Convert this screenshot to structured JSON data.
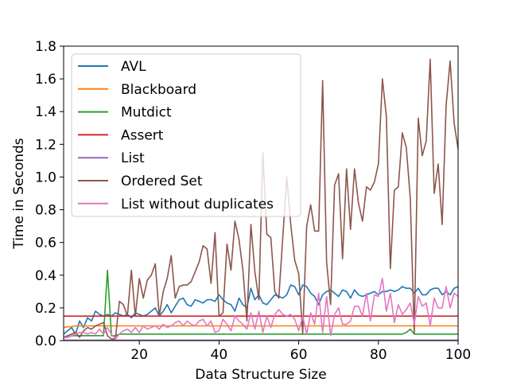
{
  "chart_data": {
    "type": "line",
    "title": "",
    "xlabel": "Data Structure Size",
    "ylabel": "Time in Seconds",
    "xlim": [
      1,
      100
    ],
    "ylim": [
      0,
      1.8
    ],
    "x_ticks": [
      20,
      40,
      60,
      80,
      100
    ],
    "y_ticks": [
      0.0,
      0.2,
      0.4,
      0.6,
      0.8,
      1.0,
      1.2,
      1.4,
      1.6,
      1.8
    ],
    "y_tick_labels": [
      "0.0",
      "0.2",
      "0.4",
      "0.6",
      "0.8",
      "1.0",
      "1.2",
      "1.4",
      "1.6",
      "1.8"
    ],
    "x_tick_labels": [
      "20",
      "40",
      "60",
      "80",
      "100"
    ],
    "grid": false,
    "legend_position": "upper-left",
    "x": [
      1,
      2,
      3,
      4,
      5,
      6,
      7,
      8,
      9,
      10,
      11,
      12,
      13,
      14,
      15,
      16,
      17,
      18,
      19,
      20,
      21,
      22,
      23,
      24,
      25,
      26,
      27,
      28,
      29,
      30,
      31,
      32,
      33,
      34,
      35,
      36,
      37,
      38,
      39,
      40,
      41,
      42,
      43,
      44,
      45,
      46,
      47,
      48,
      49,
      50,
      51,
      52,
      53,
      54,
      55,
      56,
      57,
      58,
      59,
      60,
      61,
      62,
      63,
      64,
      65,
      66,
      67,
      68,
      69,
      70,
      71,
      72,
      73,
      74,
      75,
      76,
      77,
      78,
      79,
      80,
      81,
      82,
      83,
      84,
      85,
      86,
      87,
      88,
      89,
      90,
      91,
      92,
      93,
      94,
      95,
      96,
      97,
      98,
      99,
      100
    ],
    "series": [
      {
        "name": "AVL",
        "color": "#1f77b4",
        "values": [
          0.04,
          0.06,
          0.08,
          0.04,
          0.12,
          0.08,
          0.14,
          0.12,
          0.18,
          0.16,
          0.15,
          0.16,
          0.15,
          0.17,
          0.16,
          0.15,
          0.16,
          0.14,
          0.17,
          0.16,
          0.15,
          0.16,
          0.18,
          0.2,
          0.15,
          0.18,
          0.22,
          0.17,
          0.21,
          0.25,
          0.26,
          0.22,
          0.21,
          0.25,
          0.24,
          0.23,
          0.25,
          0.25,
          0.24,
          0.28,
          0.25,
          0.23,
          0.22,
          0.18,
          0.26,
          0.22,
          0.2,
          0.32,
          0.25,
          0.28,
          0.23,
          0.22,
          0.25,
          0.28,
          0.27,
          0.26,
          0.28,
          0.34,
          0.33,
          0.28,
          0.34,
          0.33,
          0.29,
          0.27,
          0.22,
          0.28,
          0.3,
          0.31,
          0.29,
          0.27,
          0.31,
          0.3,
          0.26,
          0.31,
          0.28,
          0.27,
          0.28,
          0.29,
          0.3,
          0.28,
          0.3,
          0.3,
          0.31,
          0.3,
          0.31,
          0.33,
          0.32,
          0.32,
          0.29,
          0.32,
          0.28,
          0.28,
          0.31,
          0.32,
          0.32,
          0.28,
          0.3,
          0.28,
          0.32,
          0.33
        ]
      },
      {
        "name": "Blackboard",
        "color": "#ff7f0e",
        "values": [
          0.08,
          0.085,
          0.085,
          0.09,
          0.09,
          0.09,
          0.09,
          0.09,
          0.09,
          0.09,
          0.09,
          0.09,
          0.09,
          0.09,
          0.09,
          0.09,
          0.09,
          0.09,
          0.09,
          0.09,
          0.09,
          0.09,
          0.09,
          0.09,
          0.09,
          0.09,
          0.09,
          0.09,
          0.09,
          0.09,
          0.09,
          0.09,
          0.09,
          0.09,
          0.09,
          0.09,
          0.09,
          0.09,
          0.09,
          0.09,
          0.09,
          0.09,
          0.09,
          0.09,
          0.09,
          0.09,
          0.09,
          0.09,
          0.09,
          0.09,
          0.09,
          0.09,
          0.09,
          0.09,
          0.09,
          0.09,
          0.09,
          0.09,
          0.09,
          0.09,
          0.09,
          0.09,
          0.09,
          0.09,
          0.09,
          0.09,
          0.09,
          0.09,
          0.09,
          0.09,
          0.09,
          0.09,
          0.09,
          0.09,
          0.09,
          0.09,
          0.09,
          0.09,
          0.09,
          0.09,
          0.09,
          0.09,
          0.09,
          0.09,
          0.09,
          0.09,
          0.09,
          0.09,
          0.09,
          0.09,
          0.09,
          0.09,
          0.09,
          0.09,
          0.09,
          0.09,
          0.09,
          0.09,
          0.09,
          0.09
        ]
      },
      {
        "name": "Mutdict",
        "color": "#2ca02c",
        "values": [
          0.02,
          0.02,
          0.03,
          0.03,
          0.03,
          0.03,
          0.03,
          0.03,
          0.03,
          0.03,
          0.03,
          0.43,
          0.03,
          0.03,
          0.04,
          0.04,
          0.04,
          0.04,
          0.04,
          0.04,
          0.04,
          0.04,
          0.04,
          0.04,
          0.04,
          0.04,
          0.04,
          0.04,
          0.04,
          0.04,
          0.04,
          0.04,
          0.04,
          0.04,
          0.04,
          0.04,
          0.04,
          0.04,
          0.04,
          0.04,
          0.04,
          0.04,
          0.04,
          0.04,
          0.04,
          0.04,
          0.04,
          0.04,
          0.04,
          0.04,
          0.04,
          0.04,
          0.04,
          0.04,
          0.04,
          0.04,
          0.04,
          0.04,
          0.04,
          0.04,
          0.04,
          0.04,
          0.04,
          0.04,
          0.04,
          0.04,
          0.04,
          0.04,
          0.04,
          0.04,
          0.04,
          0.04,
          0.04,
          0.04,
          0.04,
          0.04,
          0.04,
          0.04,
          0.04,
          0.04,
          0.04,
          0.04,
          0.04,
          0.04,
          0.04,
          0.04,
          0.05,
          0.07,
          0.04,
          0.04,
          0.04,
          0.04,
          0.04,
          0.04,
          0.04,
          0.04,
          0.04,
          0.04,
          0.04,
          0.04
        ]
      },
      {
        "name": "Assert",
        "color": "#d62728",
        "values": [
          0.15,
          0.15,
          0.15,
          0.15,
          0.15,
          0.15,
          0.15,
          0.15,
          0.15,
          0.15,
          0.15,
          0.15,
          0.15,
          0.15,
          0.15,
          0.15,
          0.15,
          0.15,
          0.15,
          0.15,
          0.15,
          0.15,
          0.15,
          0.15,
          0.15,
          0.15,
          0.15,
          0.15,
          0.15,
          0.15,
          0.15,
          0.15,
          0.15,
          0.15,
          0.15,
          0.15,
          0.15,
          0.15,
          0.15,
          0.15,
          0.15,
          0.15,
          0.15,
          0.15,
          0.15,
          0.15,
          0.15,
          0.15,
          0.15,
          0.15,
          0.15,
          0.15,
          0.15,
          0.15,
          0.15,
          0.15,
          0.15,
          0.15,
          0.15,
          0.15,
          0.15,
          0.15,
          0.15,
          0.15,
          0.15,
          0.15,
          0.15,
          0.15,
          0.15,
          0.15,
          0.15,
          0.15,
          0.15,
          0.15,
          0.15,
          0.15,
          0.15,
          0.15,
          0.15,
          0.15,
          0.15,
          0.15,
          0.15,
          0.15,
          0.15,
          0.15,
          0.15,
          0.15,
          0.15,
          0.15,
          0.15,
          0.15,
          0.15,
          0.15,
          0.15,
          0.15,
          0.15,
          0.15,
          0.15,
          0.15
        ]
      },
      {
        "name": "List",
        "color": "#9467bd",
        "values": [
          0.003,
          0.003,
          0.003,
          0.003,
          0.003,
          0.003,
          0.003,
          0.003,
          0.003,
          0.003,
          0.003,
          0.003,
          0.003,
          0.003,
          0.003,
          0.003,
          0.003,
          0.003,
          0.003,
          0.003,
          0.003,
          0.003,
          0.003,
          0.003,
          0.003,
          0.003,
          0.003,
          0.003,
          0.003,
          0.003,
          0.003,
          0.003,
          0.003,
          0.003,
          0.003,
          0.003,
          0.003,
          0.003,
          0.003,
          0.003,
          0.003,
          0.003,
          0.003,
          0.003,
          0.003,
          0.003,
          0.003,
          0.003,
          0.003,
          0.003,
          0.003,
          0.003,
          0.003,
          0.003,
          0.003,
          0.003,
          0.003,
          0.003,
          0.003,
          0.003,
          0.003,
          0.003,
          0.003,
          0.003,
          0.003,
          0.003,
          0.003,
          0.003,
          0.003,
          0.003,
          0.003,
          0.003,
          0.003,
          0.003,
          0.003,
          0.003,
          0.003,
          0.003,
          0.003,
          0.003,
          0.003,
          0.003,
          0.003,
          0.003,
          0.003,
          0.003,
          0.003,
          0.003,
          0.003,
          0.003,
          0.003,
          0.003,
          0.003,
          0.003,
          0.003,
          0.003,
          0.003,
          0.003,
          0.003,
          0.003
        ]
      },
      {
        "name": "Ordered Set",
        "color": "#8c564b",
        "values": [
          0.02,
          0.03,
          0.04,
          0.05,
          0.02,
          0.06,
          0.08,
          0.07,
          0.09,
          0.1,
          0.11,
          0.03,
          0.01,
          0.01,
          0.24,
          0.22,
          0.15,
          0.43,
          0.15,
          0.38,
          0.26,
          0.37,
          0.4,
          0.47,
          0.15,
          0.3,
          0.38,
          0.52,
          0.26,
          0.33,
          0.34,
          0.34,
          0.36,
          0.42,
          0.48,
          0.58,
          0.56,
          0.35,
          0.66,
          0.15,
          0.17,
          0.59,
          0.43,
          0.73,
          0.62,
          0.43,
          0.12,
          0.71,
          0.42,
          0.25,
          1.15,
          0.65,
          0.63,
          0.3,
          0.26,
          0.63,
          1.0,
          0.71,
          0.49,
          0.41,
          0.04,
          0.7,
          0.83,
          0.67,
          0.67,
          1.59,
          0.48,
          0.22,
          0.95,
          1.02,
          0.5,
          1.05,
          0.68,
          1.05,
          0.84,
          0.73,
          0.94,
          0.92,
          0.97,
          1.08,
          1.6,
          1.37,
          0.44,
          0.92,
          0.94,
          1.27,
          1.18,
          0.87,
          0.04,
          1.36,
          1.13,
          1.22,
          1.72,
          0.9,
          1.08,
          0.71,
          1.44,
          1.71,
          1.33,
          1.17
        ]
      },
      {
        "name": "List without duplicates",
        "color": "#e377c2",
        "values": [
          0.02,
          0.02,
          0.03,
          0.04,
          0.05,
          0.05,
          0.04,
          0.05,
          0.04,
          0.07,
          0.04,
          0.08,
          0.04,
          0.01,
          0.04,
          0.06,
          0.07,
          0.05,
          0.08,
          0.05,
          0.09,
          0.07,
          0.08,
          0.09,
          0.07,
          0.1,
          0.08,
          0.09,
          0.11,
          0.12,
          0.09,
          0.12,
          0.1,
          0.09,
          0.12,
          0.13,
          0.09,
          0.12,
          0.05,
          0.06,
          0.13,
          0.1,
          0.06,
          0.15,
          0.12,
          0.1,
          0.07,
          0.17,
          0.07,
          0.18,
          0.05,
          0.15,
          0.08,
          0.16,
          0.19,
          0.16,
          0.15,
          0.16,
          0.13,
          0.06,
          0.15,
          0.04,
          0.17,
          0.1,
          0.29,
          0.05,
          0.27,
          0.03,
          0.16,
          0.2,
          0.1,
          0.1,
          0.12,
          0.21,
          0.21,
          0.15,
          0.29,
          0.12,
          0.28,
          0.27,
          0.38,
          0.18,
          0.29,
          0.11,
          0.22,
          0.16,
          0.19,
          0.23,
          0.1,
          0.27,
          0.21,
          0.23,
          0.09,
          0.26,
          0.2,
          0.2,
          0.33,
          0.2,
          0.29,
          0.27
        ]
      }
    ]
  }
}
